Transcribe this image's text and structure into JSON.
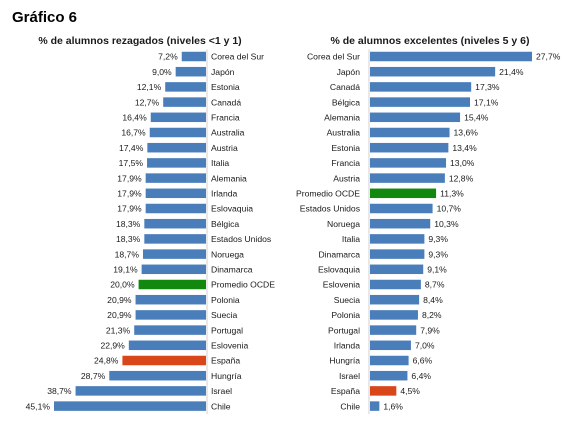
{
  "title": "Gráfico 6",
  "colors": {
    "default": "#4a7ebb",
    "average": "#12880f",
    "spain": "#d9461a"
  },
  "chart_data": [
    {
      "type": "bar",
      "orientation": "horizontal",
      "title": "% de alumnos rezagados (niveles <1 y 1)",
      "categories": [
        "Corea del Sur",
        "Japón",
        "Estonia",
        "Canadá",
        "Francia",
        "Australia",
        "Austria",
        "Italia",
        "Alemania",
        "Irlanda",
        "Eslovaquia",
        "Bélgica",
        "Estados Unidos",
        "Noruega",
        "Dinamarca",
        "Promedio OCDE",
        "Polonia",
        "Suecia",
        "Portugal",
        "Eslovenia",
        "España",
        "Hungría",
        "Israel",
        "Chile"
      ],
      "values": [
        7.2,
        9.0,
        12.1,
        12.7,
        16.4,
        16.7,
        17.4,
        17.5,
        17.9,
        17.9,
        17.9,
        18.3,
        18.3,
        18.7,
        19.1,
        20.0,
        20.9,
        20.9,
        21.3,
        22.9,
        24.8,
        28.7,
        38.7,
        45.1
      ],
      "value_labels": [
        "7,2%",
        "9,0%",
        "12,1%",
        "12,7%",
        "16,4%",
        "16,7%",
        "17,4%",
        "17,5%",
        "17,9%",
        "17,9%",
        "17,9%",
        "18,3%",
        "18,3%",
        "18,7%",
        "19,1%",
        "20,0%",
        "20,9%",
        "20,9%",
        "21,3%",
        "22,9%",
        "24,8%",
        "28,7%",
        "38,7%",
        "45,1%"
      ],
      "xlim": [
        0,
        45.1
      ]
    },
    {
      "type": "bar",
      "orientation": "horizontal",
      "title": "% de alumnos excelentes (niveles 5 y 6)",
      "categories": [
        "Corea del Sur",
        "Japón",
        "Canadá",
        "Bélgica",
        "Alemania",
        "Australia",
        "Estonia",
        "Francia",
        "Austria",
        "Promedio OCDE",
        "Estados Unidos",
        "Noruega",
        "Italia",
        "Dinamarca",
        "Eslovaquia",
        "Eslovenia",
        "Suecia",
        "Polonia",
        "Portugal",
        "Irlanda",
        "Hungría",
        "Israel",
        "España",
        "Chile"
      ],
      "values": [
        27.7,
        21.4,
        17.3,
        17.1,
        15.4,
        13.6,
        13.4,
        13.0,
        12.8,
        11.3,
        10.7,
        10.3,
        9.3,
        9.3,
        9.1,
        8.7,
        8.4,
        8.2,
        7.9,
        7.0,
        6.6,
        6.4,
        4.5,
        1.6
      ],
      "value_labels": [
        "27,7%",
        "21,4%",
        "17,3%",
        "17,1%",
        "15,4%",
        "13,6%",
        "13,4%",
        "13,0%",
        "12,8%",
        "11,3%",
        "10,7%",
        "10,3%",
        "9,3%",
        "9,3%",
        "9,1%",
        "8,7%",
        "8,4%",
        "8,2%",
        "7,9%",
        "7,0%",
        "6,6%",
        "6,4%",
        "4,5%",
        "1,6%"
      ],
      "xlim": [
        0,
        27.7
      ]
    }
  ]
}
